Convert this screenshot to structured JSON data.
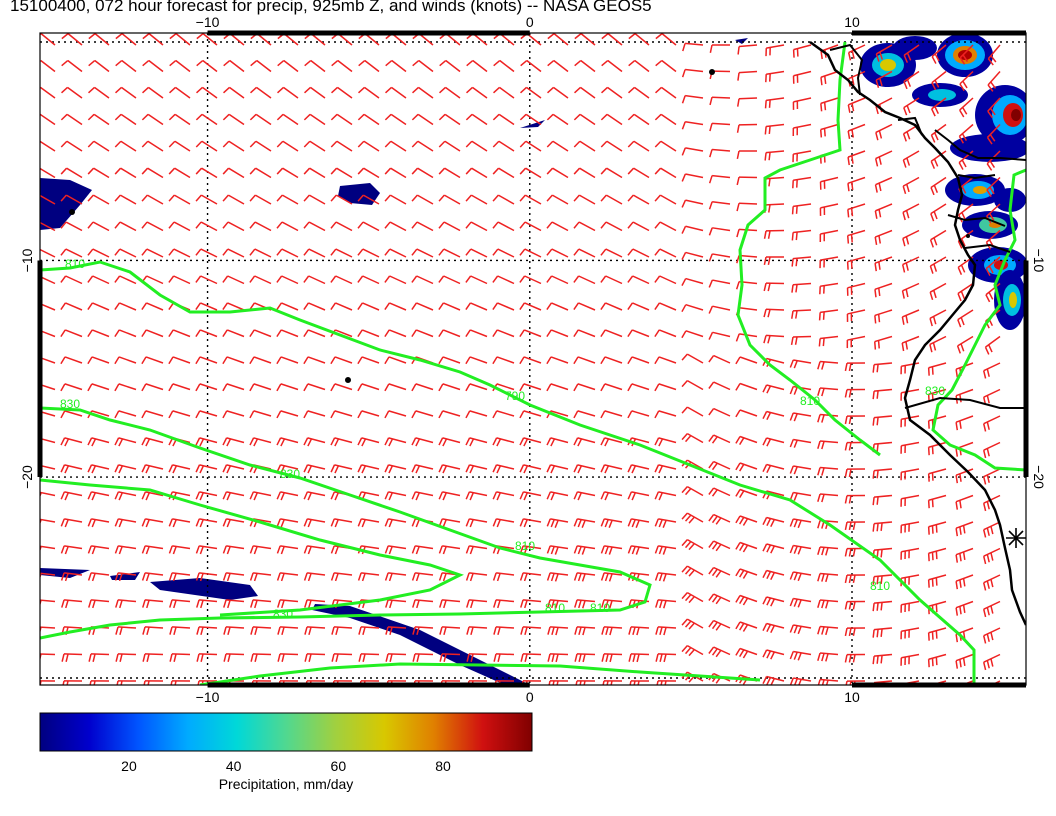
{
  "title": "15100400, 072 hour forecast for precip, 925mb Z, and winds (knots) -- NASA GEOS5",
  "map": {
    "lon_range": [
      -15.2,
      15.4
    ],
    "lat_range": [
      -29.6,
      0.5
    ],
    "lon_ticks": [
      {
        "value": -10,
        "label": "−10"
      },
      {
        "value": 0,
        "label": "0"
      },
      {
        "value": 10,
        "label": "10"
      }
    ],
    "lat_ticks": [
      {
        "value": -10,
        "label": "−10"
      },
      {
        "value": -20,
        "label": "−20"
      }
    ],
    "gridlines": "dotted",
    "contour_color": "#22ee22",
    "barb_color": "#ee2222",
    "coast_color": "#000000",
    "contours": [
      {
        "label": "810"
      },
      {
        "label": "810"
      },
      {
        "label": "790"
      },
      {
        "label": "810"
      },
      {
        "label": "830"
      },
      {
        "label": "830"
      },
      {
        "label": "810"
      },
      {
        "label": "830"
      },
      {
        "label": "810"
      },
      {
        "label": "810"
      },
      {
        "label": "830"
      }
    ]
  },
  "colorbar": {
    "label": "Precipitation, mm/day",
    "ticks": [
      {
        "value": 20,
        "label": "20"
      },
      {
        "value": 40,
        "label": "40"
      },
      {
        "value": 60,
        "label": "60"
      },
      {
        "value": 80,
        "label": "80"
      }
    ],
    "range": [
      3,
      97
    ],
    "colors": [
      "#000080",
      "#0000cd",
      "#0055ff",
      "#00aaff",
      "#00d8d8",
      "#50d890",
      "#a0d040",
      "#d8c800",
      "#e08000",
      "#d01010",
      "#800000"
    ]
  }
}
